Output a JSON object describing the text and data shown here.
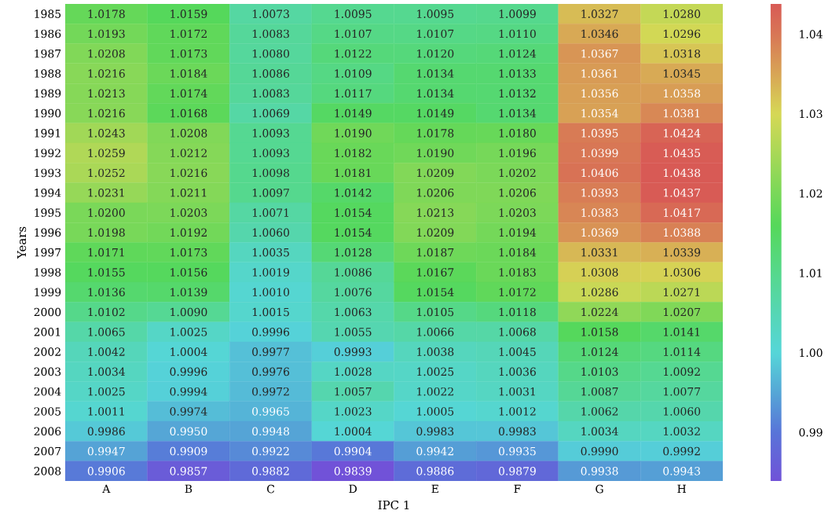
{
  "chart_data": {
    "type": "heatmap",
    "xlabel": "IPC 1",
    "ylabel": "Years",
    "categories": [
      "A",
      "B",
      "C",
      "D",
      "E",
      "F",
      "G",
      "H"
    ],
    "y_categories": [
      "1985",
      "1986",
      "1987",
      "1988",
      "1989",
      "1990",
      "1991",
      "1992",
      "1993",
      "1994",
      "1995",
      "1996",
      "1997",
      "1998",
      "1999",
      "2000",
      "2001",
      "2002",
      "2003",
      "2004",
      "2005",
      "2006",
      "2007",
      "2008"
    ],
    "cells": [
      [
        1.0178,
        1.0159,
        1.0073,
        1.0095,
        1.0095,
        1.0099,
        1.0327,
        1.028
      ],
      [
        1.0193,
        1.0172,
        1.0083,
        1.0107,
        1.0107,
        1.011,
        1.0346,
        1.0296
      ],
      [
        1.0208,
        1.0173,
        1.008,
        1.0122,
        1.012,
        1.0124,
        1.0367,
        1.0318
      ],
      [
        1.0216,
        1.0184,
        1.0086,
        1.0109,
        1.0134,
        1.0133,
        1.0361,
        1.0345
      ],
      [
        1.0213,
        1.0174,
        1.0083,
        1.0117,
        1.0134,
        1.0132,
        1.0356,
        1.0358
      ],
      [
        1.0216,
        1.0168,
        1.0069,
        1.0149,
        1.0149,
        1.0134,
        1.0354,
        1.0381
      ],
      [
        1.0243,
        1.0208,
        1.0093,
        1.019,
        1.0178,
        1.018,
        1.0395,
        1.0424
      ],
      [
        1.0259,
        1.0212,
        1.0093,
        1.0182,
        1.019,
        1.0196,
        1.0399,
        1.0435
      ],
      [
        1.0252,
        1.0216,
        1.0098,
        1.0181,
        1.0209,
        1.0202,
        1.0406,
        1.0438
      ],
      [
        1.0231,
        1.0211,
        1.0097,
        1.0142,
        1.0206,
        1.0206,
        1.0393,
        1.0437
      ],
      [
        1.02,
        1.0203,
        1.0071,
        1.0154,
        1.0213,
        1.0203,
        1.0383,
        1.0417
      ],
      [
        1.0198,
        1.0192,
        1.006,
        1.0154,
        1.0209,
        1.0194,
        1.0369,
        1.0388
      ],
      [
        1.0171,
        1.0173,
        1.0035,
        1.0128,
        1.0187,
        1.0184,
        1.0331,
        1.0339
      ],
      [
        1.0155,
        1.0156,
        1.0019,
        1.0086,
        1.0167,
        1.0183,
        1.0308,
        1.0306
      ],
      [
        1.0136,
        1.0139,
        1.001,
        1.0076,
        1.0154,
        1.0172,
        1.0286,
        1.0271
      ],
      [
        1.0102,
        1.009,
        1.0015,
        1.0063,
        1.0105,
        1.0118,
        1.0224,
        1.0207
      ],
      [
        1.0065,
        1.0025,
        0.9996,
        1.0055,
        1.0066,
        1.0068,
        1.0158,
        1.0141
      ],
      [
        1.0042,
        1.0004,
        0.9977,
        0.9993,
        1.0038,
        1.0045,
        1.0124,
        1.0114
      ],
      [
        1.0034,
        0.9996,
        0.9976,
        1.0028,
        1.0025,
        1.0036,
        1.0103,
        1.0092
      ],
      [
        1.0025,
        0.9994,
        0.9972,
        1.0057,
        1.0022,
        1.0031,
        1.0087,
        1.0077
      ],
      [
        1.0011,
        0.9974,
        0.9965,
        1.0023,
        1.0005,
        1.0012,
        1.0062,
        1.006
      ],
      [
        0.9986,
        0.995,
        0.9948,
        1.0004,
        0.9983,
        0.9983,
        1.0034,
        1.0032
      ],
      [
        0.9947,
        0.9909,
        0.9922,
        0.9904,
        0.9942,
        0.9935,
        0.999,
        0.9992
      ],
      [
        0.9906,
        0.9857,
        0.9882,
        0.9839,
        0.9886,
        0.9879,
        0.9938,
        0.9943
      ]
    ],
    "cell_labels": [
      [
        "1.0178",
        "1.0159",
        "1.0073",
        "1.0095",
        "1.0095",
        "1.0099",
        "1.0327",
        "1.0280"
      ],
      [
        "1.0193",
        "1.0172",
        "1.0083",
        "1.0107",
        "1.0107",
        "1.0110",
        "1.0346",
        "1.0296"
      ],
      [
        "1.0208",
        "1.0173",
        "1.0080",
        "1.0122",
        "1.0120",
        "1.0124",
        "1.0367",
        "1.0318"
      ],
      [
        "1.0216",
        "1.0184",
        "1.0086",
        "1.0109",
        "1.0134",
        "1.0133",
        "1.0361",
        "1.0345"
      ],
      [
        "1.0213",
        "1.0174",
        "1.0083",
        "1.0117",
        "1.0134",
        "1.0132",
        "1.0356",
        "1.0358"
      ],
      [
        "1.0216",
        "1.0168",
        "1.0069",
        "1.0149",
        "1.0149",
        "1.0134",
        "1.0354",
        "1.0381"
      ],
      [
        "1.0243",
        "1.0208",
        "1.0093",
        "1.0190",
        "1.0178",
        "1.0180",
        "1.0395",
        "1.0424"
      ],
      [
        "1.0259",
        "1.0212",
        "1.0093",
        "1.0182",
        "1.0190",
        "1.0196",
        "1.0399",
        "1.0435"
      ],
      [
        "1.0252",
        "1.0216",
        "1.0098",
        "1.0181",
        "1.0209",
        "1.0202",
        "1.0406",
        "1.0438"
      ],
      [
        "1.0231",
        "1.0211",
        "1.0097",
        "1.0142",
        "1.0206",
        "1.0206",
        "1.0393",
        "1.0437"
      ],
      [
        "1.0200",
        "1.0203",
        "1.0071",
        "1.0154",
        "1.0213",
        "1.0203",
        "1.0383",
        "1.0417"
      ],
      [
        "1.0198",
        "1.0192",
        "1.0060",
        "1.0154",
        "1.0209",
        "1.0194",
        "1.0369",
        "1.0388"
      ],
      [
        "1.0171",
        "1.0173",
        "1.0035",
        "1.0128",
        "1.0187",
        "1.0184",
        "1.0331",
        "1.0339"
      ],
      [
        "1.0155",
        "1.0156",
        "1.0019",
        "1.0086",
        "1.0167",
        "1.0183",
        "1.0308",
        "1.0306"
      ],
      [
        "1.0136",
        "1.0139",
        "1.0010",
        "1.0076",
        "1.0154",
        "1.0172",
        "1.0286",
        "1.0271"
      ],
      [
        "1.0102",
        "1.0090",
        "1.0015",
        "1.0063",
        "1.0105",
        "1.0118",
        "1.0224",
        "1.0207"
      ],
      [
        "1.0065",
        "1.0025",
        "0.9996",
        "1.0055",
        "1.0066",
        "1.0068",
        "1.0158",
        "1.0141"
      ],
      [
        "1.0042",
        "1.0004",
        "0.9977",
        "0.9993",
        "1.0038",
        "1.0045",
        "1.0124",
        "1.0114"
      ],
      [
        "1.0034",
        "0.9996",
        "0.9976",
        "1.0028",
        "1.0025",
        "1.0036",
        "1.0103",
        "1.0092"
      ],
      [
        "1.0025",
        "0.9994",
        "0.9972",
        "1.0057",
        "1.0022",
        "1.0031",
        "1.0087",
        "1.0077"
      ],
      [
        "1.0011",
        "0.9974",
        "0.9965",
        "1.0023",
        "1.0005",
        "1.0012",
        "1.0062",
        "1.0060"
      ],
      [
        "0.9986",
        "0.9950",
        "0.9948",
        "1.0004",
        "0.9983",
        "0.9983",
        "1.0034",
        "1.0032"
      ],
      [
        "0.9947",
        "0.9909",
        "0.9922",
        "0.9904",
        "0.9942",
        "0.9935",
        "0.9990",
        "0.9992"
      ],
      [
        "0.9906",
        "0.9857",
        "0.9882",
        "0.9839",
        "0.9886",
        "0.9879",
        "0.9938",
        "0.9943"
      ]
    ],
    "data_labels": true,
    "clim": [
      0.9839,
      1.0438
    ],
    "cticks": [
      0.99,
      {
        "value": 1.0,
        "label": "1.00"
      },
      1.01,
      1.02,
      1.03,
      1.04
    ]
  }
}
